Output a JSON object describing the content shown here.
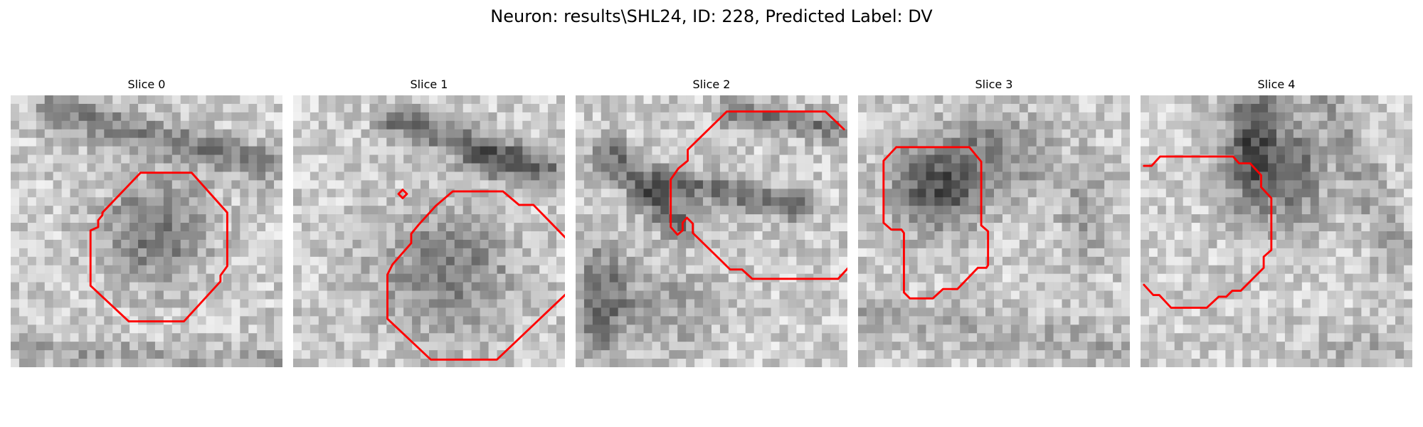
{
  "figure": {
    "title": "Neuron: results\\SHL24, ID: 228, Predicted Label: DV",
    "contour_color": "#ff0000"
  },
  "slices": [
    {
      "title": "Slice 0"
    },
    {
      "title": "Slice 1"
    },
    {
      "title": "Slice 2"
    },
    {
      "title": "Slice 3"
    },
    {
      "title": "Slice 4"
    }
  ]
}
